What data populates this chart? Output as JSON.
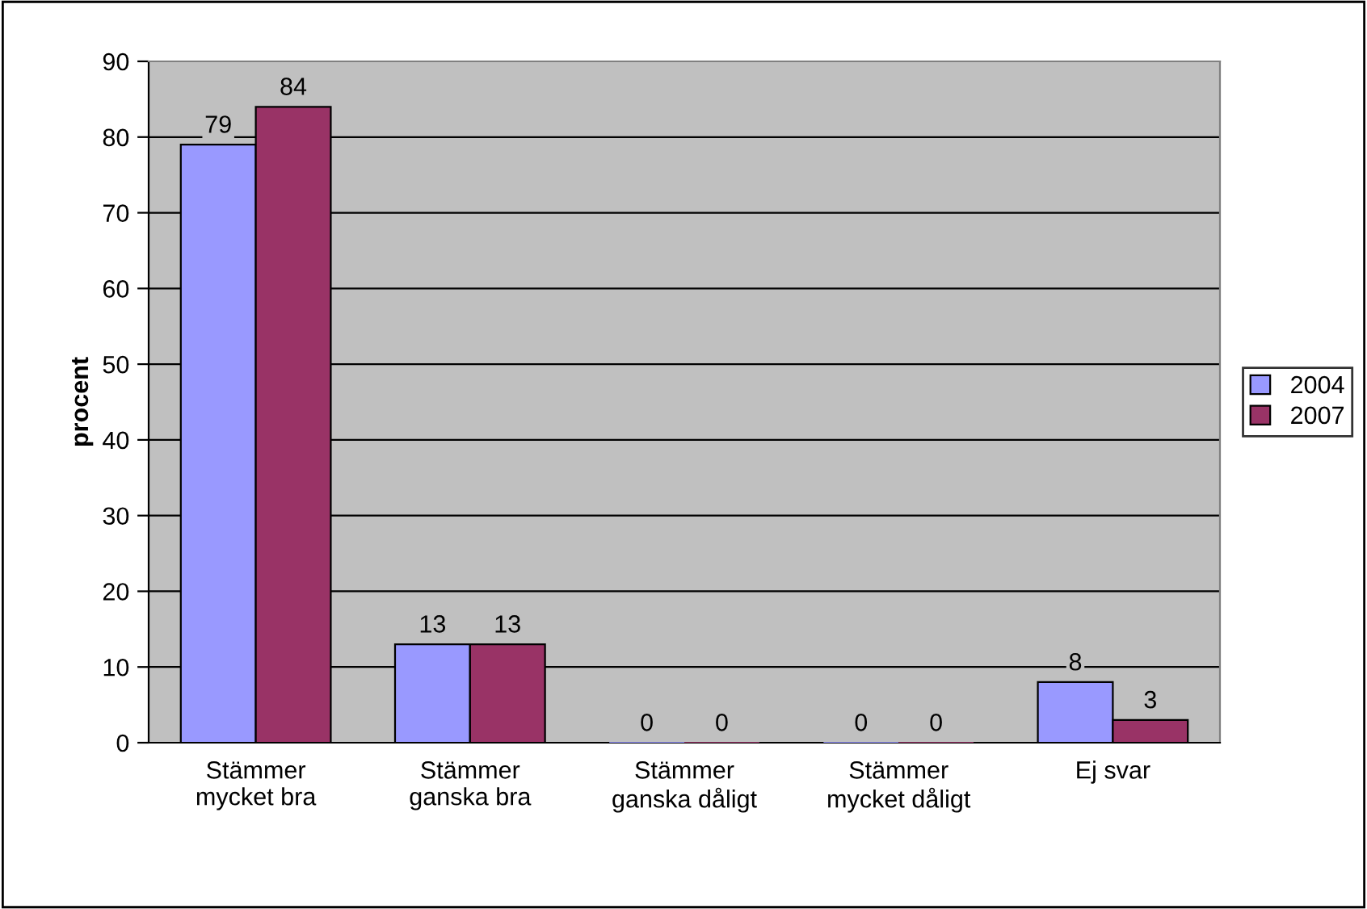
{
  "chart_data": {
    "type": "bar",
    "ylabel": "procent",
    "categories": [
      "Stämmer\nmycket bra",
      "Stämmer\nganska bra",
      "Stämmer\nganska dåligt",
      "Stämmer\nmycket dåligt",
      "Ej svar"
    ],
    "series": [
      {
        "name": "2004",
        "color": "#9999ff",
        "values": [
          79,
          13,
          0,
          0,
          8
        ]
      },
      {
        "name": "2007",
        "color": "#993366",
        "values": [
          84,
          13,
          0,
          0,
          3
        ]
      }
    ],
    "ylim": [
      0,
      90
    ],
    "yticks": [
      0,
      10,
      20,
      30,
      40,
      50,
      60,
      70,
      80,
      90
    ],
    "grid": "y",
    "legend": "right",
    "data_labels": true
  }
}
